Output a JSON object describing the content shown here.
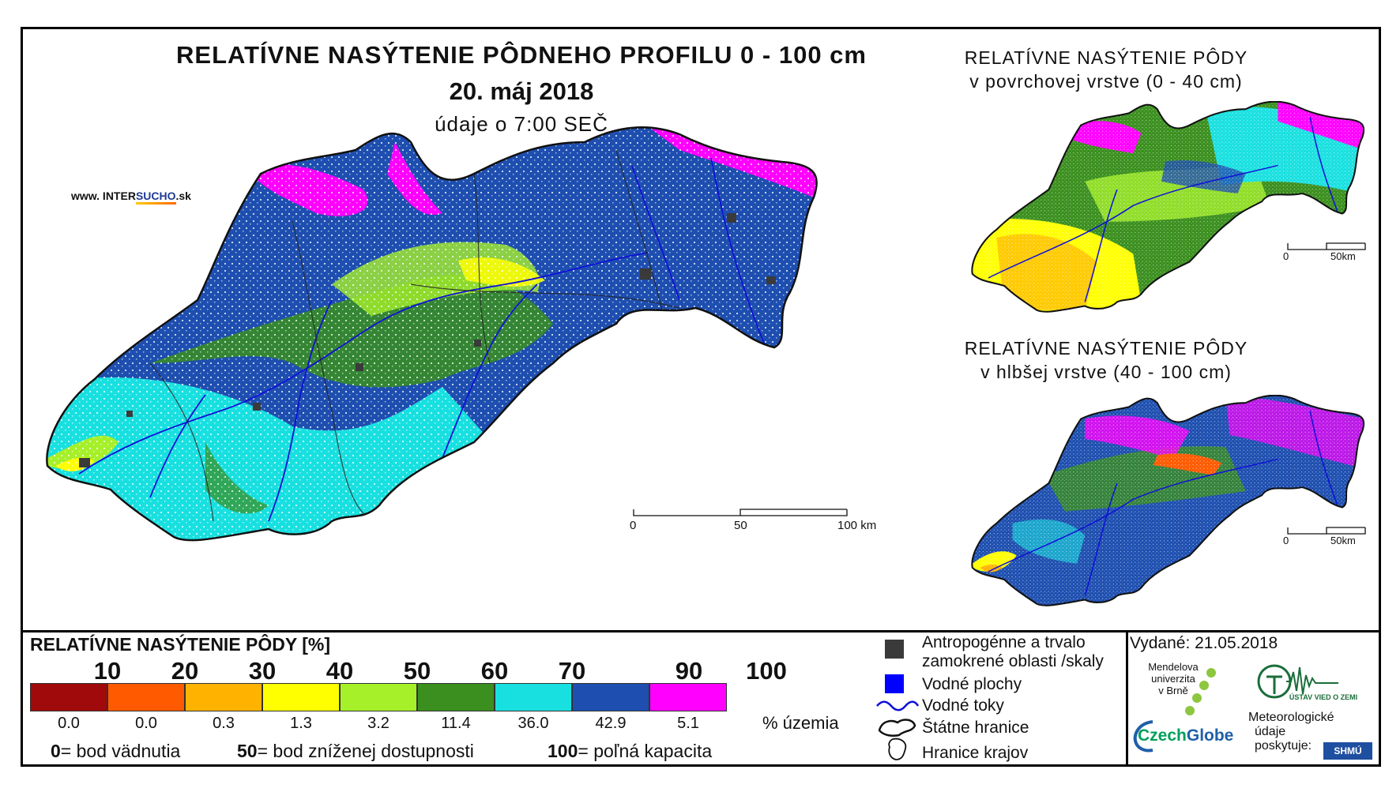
{
  "header": {
    "title": "RELATÍVNE NASÝTENIE PÔDNEHO PROFILU 0 - 100 cm",
    "date": "20. máj 2018",
    "time_note": "údaje o 7:00 SEČ",
    "site_prefix": "www. INTER",
    "site_highlight": "SUCHO",
    "site_suffix": ".sk"
  },
  "main_map": {
    "scale": {
      "ticks": [
        "0",
        "50",
        "100 km"
      ]
    }
  },
  "inset_top": {
    "title_line1": "RELATÍVNE NASÝTENIE PÔDY",
    "title_line2": "v povrchovej vrstve (0 - 40 cm)",
    "scale": {
      "ticks": [
        "0",
        "50km"
      ]
    }
  },
  "inset_bottom": {
    "title_line1": "RELATÍVNE NASÝTENIE PÔDY",
    "title_line2": "v hlbšej vrstve (40 - 100 cm)",
    "scale": {
      "ticks": [
        "0",
        "50km"
      ]
    }
  },
  "legend": {
    "title": "RELATÍVNE NASÝTENIE PÔDY [%]",
    "thresholds": [
      "10",
      "20",
      "30",
      "40",
      "50",
      "60",
      "70",
      "90",
      "100"
    ],
    "classes": [
      {
        "color": "#a00a0a",
        "share": "0.0"
      },
      {
        "color": "#ff5a00",
        "share": "0.0"
      },
      {
        "color": "#ffb300",
        "share": "0.3"
      },
      {
        "color": "#ffff00",
        "share": "1.3"
      },
      {
        "color": "#a6f02a",
        "share": "3.2"
      },
      {
        "color": "#3a8f1e",
        "share": "11.4"
      },
      {
        "color": "#19e0e0",
        "share": "36.0"
      },
      {
        "color": "#1e4fb0",
        "share": "42.9"
      },
      {
        "color": "#ff00ff",
        "share": "5.1"
      }
    ],
    "share_unit": "% územia",
    "definitions": [
      {
        "num": "0",
        "text": "= bod vädnutia"
      },
      {
        "num": "50",
        "text": "= bod zníženej dostupnosti"
      },
      {
        "num": "100",
        "text": "= poľná kapacita"
      }
    ]
  },
  "symbols": {
    "anthropogenic_line1": "Antropogénne a trvalo",
    "anthropogenic_line2": "zamokrené oblasti /skaly",
    "water_bodies": "Vodné plochy",
    "rivers": "Vodné toky",
    "state_border": "Štátne hranice",
    "region_border": "Hranice krajov"
  },
  "footer": {
    "issued": "Vydané: 21.05.2018",
    "mendel_l1": "Mendelova",
    "mendel_l2": "univerzita",
    "mendel_l3": "v Brně",
    "czech_a": "Czech",
    "czech_b": "Globe",
    "meteo_l1": "Meteorologické",
    "meteo_l2": "údaje",
    "meteo_l3": "poskytuje:",
    "ustav": "ÚSTAV VIED O ZEMI",
    "shmu": "SHMÚ"
  }
}
